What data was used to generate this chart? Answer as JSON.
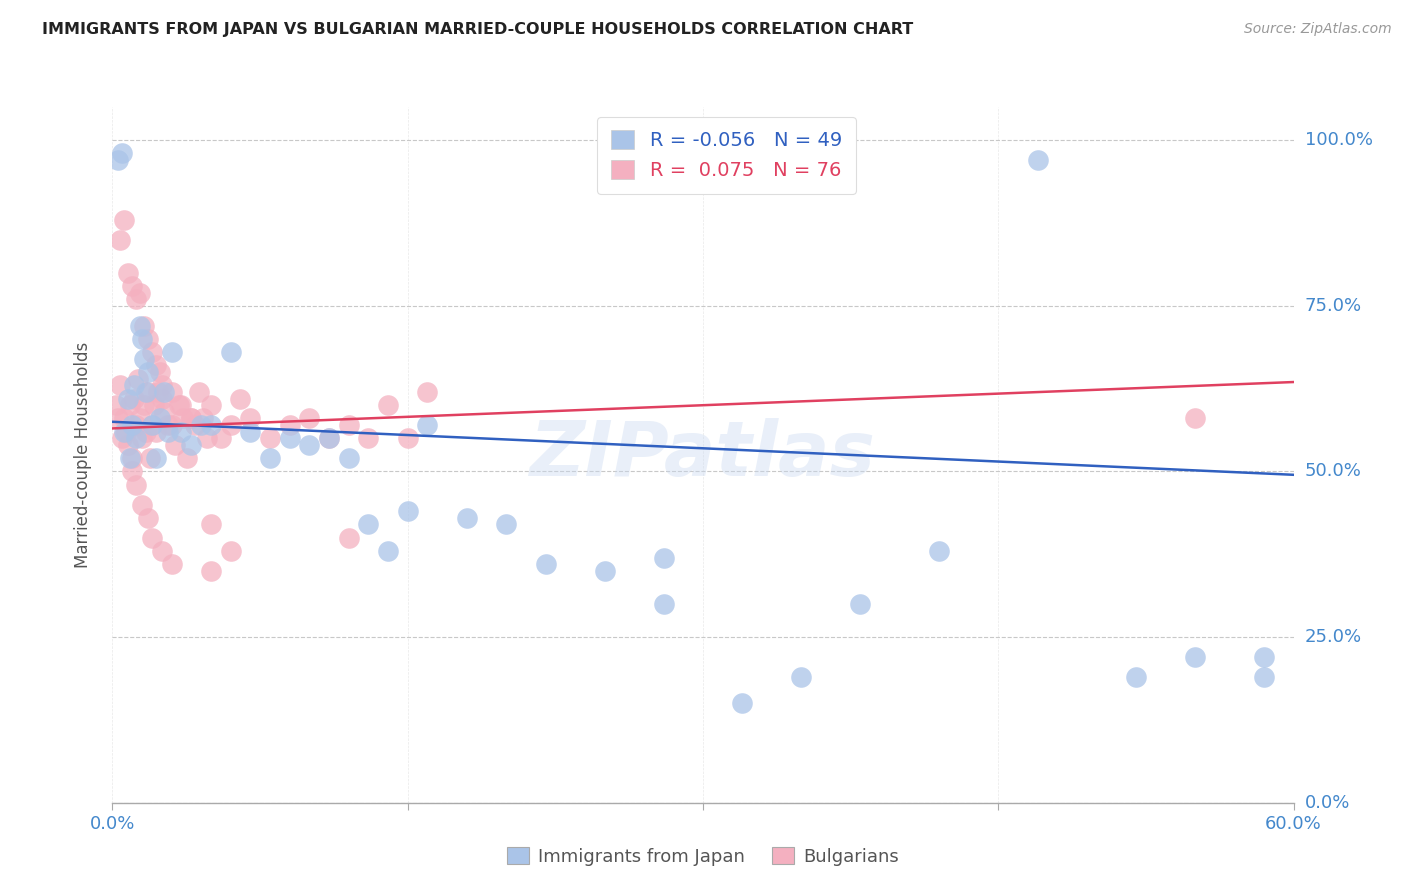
{
  "title": "IMMIGRANTS FROM JAPAN VS BULGARIAN MARRIED-COUPLE HOUSEHOLDS CORRELATION CHART",
  "source": "Source: ZipAtlas.com",
  "ylabel": "Married-couple Households",
  "ytick_labels": [
    "0.0%",
    "25.0%",
    "50.0%",
    "75.0%",
    "100.0%"
  ],
  "ytick_values": [
    0.0,
    0.25,
    0.5,
    0.75,
    1.0
  ],
  "xmin": 0.0,
  "xmax": 0.6,
  "ymin": 0.0,
  "ymax": 1.05,
  "legend_japan_R": "-0.056",
  "legend_japan_N": "49",
  "legend_bulg_R": "0.075",
  "legend_bulg_N": "76",
  "japan_color": "#aac4e8",
  "bulg_color": "#f4b0c0",
  "japan_line_color": "#3060c0",
  "bulg_line_color": "#e04060",
  "background_color": "#ffffff",
  "grid_color": "#c8c8c8",
  "title_color": "#222222",
  "axis_label_color": "#4488cc",
  "watermark_text": "ZIPatlas",
  "japan_x": [
    0.003,
    0.005,
    0.006,
    0.008,
    0.009,
    0.01,
    0.011,
    0.012,
    0.014,
    0.015,
    0.016,
    0.017,
    0.018,
    0.02,
    0.022,
    0.024,
    0.026,
    0.028,
    0.03,
    0.035,
    0.04,
    0.045,
    0.05,
    0.06,
    0.07,
    0.08,
    0.09,
    0.1,
    0.11,
    0.12,
    0.13,
    0.14,
    0.15,
    0.16,
    0.18,
    0.2,
    0.22,
    0.25,
    0.28,
    0.32,
    0.35,
    0.38,
    0.42,
    0.47,
    0.28,
    0.52,
    0.55,
    0.585,
    0.585
  ],
  "japan_y": [
    0.97,
    0.98,
    0.56,
    0.61,
    0.52,
    0.57,
    0.63,
    0.55,
    0.72,
    0.7,
    0.67,
    0.62,
    0.65,
    0.57,
    0.52,
    0.58,
    0.62,
    0.56,
    0.68,
    0.56,
    0.54,
    0.57,
    0.57,
    0.68,
    0.56,
    0.52,
    0.55,
    0.54,
    0.55,
    0.52,
    0.42,
    0.38,
    0.44,
    0.57,
    0.43,
    0.42,
    0.36,
    0.35,
    0.3,
    0.15,
    0.19,
    0.3,
    0.38,
    0.97,
    0.37,
    0.19,
    0.22,
    0.19,
    0.22
  ],
  "bulg_x": [
    0.002,
    0.003,
    0.004,
    0.005,
    0.006,
    0.007,
    0.008,
    0.009,
    0.01,
    0.011,
    0.012,
    0.013,
    0.014,
    0.015,
    0.016,
    0.017,
    0.018,
    0.019,
    0.02,
    0.021,
    0.022,
    0.023,
    0.024,
    0.025,
    0.026,
    0.028,
    0.03,
    0.032,
    0.034,
    0.036,
    0.038,
    0.04,
    0.042,
    0.044,
    0.046,
    0.048,
    0.05,
    0.055,
    0.06,
    0.065,
    0.07,
    0.08,
    0.09,
    0.1,
    0.11,
    0.12,
    0.13,
    0.14,
    0.15,
    0.16,
    0.004,
    0.006,
    0.008,
    0.01,
    0.012,
    0.014,
    0.016,
    0.018,
    0.02,
    0.022,
    0.025,
    0.03,
    0.035,
    0.04,
    0.05,
    0.06,
    0.01,
    0.012,
    0.015,
    0.018,
    0.02,
    0.025,
    0.03,
    0.05,
    0.12,
    0.55
  ],
  "bulg_y": [
    0.6,
    0.58,
    0.63,
    0.55,
    0.58,
    0.56,
    0.54,
    0.6,
    0.52,
    0.61,
    0.57,
    0.64,
    0.58,
    0.55,
    0.6,
    0.56,
    0.62,
    0.52,
    0.57,
    0.6,
    0.56,
    0.62,
    0.65,
    0.61,
    0.59,
    0.57,
    0.57,
    0.54,
    0.6,
    0.58,
    0.52,
    0.58,
    0.57,
    0.62,
    0.58,
    0.55,
    0.6,
    0.55,
    0.57,
    0.61,
    0.58,
    0.55,
    0.57,
    0.58,
    0.55,
    0.57,
    0.55,
    0.6,
    0.55,
    0.62,
    0.85,
    0.88,
    0.8,
    0.78,
    0.76,
    0.77,
    0.72,
    0.7,
    0.68,
    0.66,
    0.63,
    0.62,
    0.6,
    0.58,
    0.42,
    0.38,
    0.5,
    0.48,
    0.45,
    0.43,
    0.4,
    0.38,
    0.36,
    0.35,
    0.4,
    0.58
  ],
  "japan_trend_x": [
    0.0,
    0.6
  ],
  "japan_trend_y": [
    0.575,
    0.495
  ],
  "bulg_trend_x": [
    0.0,
    0.6
  ],
  "bulg_trend_y": [
    0.565,
    0.635
  ]
}
